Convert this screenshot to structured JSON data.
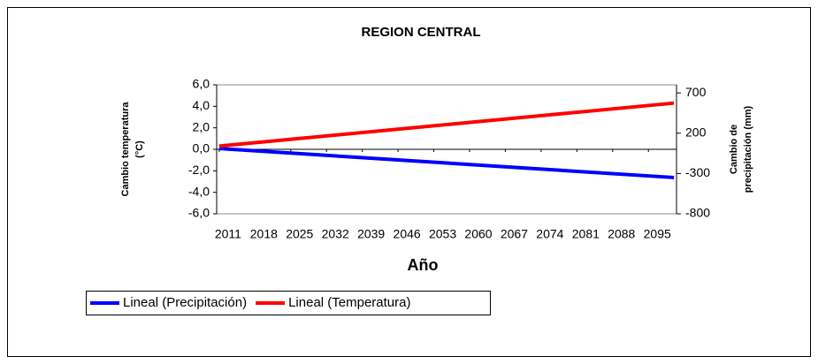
{
  "chart_data": {
    "type": "line",
    "title": "REGION CENTRAL",
    "xlabel": "Año",
    "ylabel": [
      "Cambio temperatura",
      "(°C)"
    ],
    "y2label": [
      "Cambio de",
      "precipitación (mm)"
    ],
    "x": [
      2011,
      2100
    ],
    "xlim": [
      2011,
      2100
    ],
    "xticks": [
      2011,
      2018,
      2025,
      2032,
      2039,
      2046,
      2053,
      2060,
      2067,
      2074,
      2081,
      2088,
      2095
    ],
    "ylim": [
      -6,
      6
    ],
    "yticks": [
      {
        "value": -6,
        "label": "-6,0"
      },
      {
        "value": -4,
        "label": "-4,0"
      },
      {
        "value": -2,
        "label": "-2,0"
      },
      {
        "value": 0,
        "label": "0,0"
      },
      {
        "value": 2,
        "label": "2,0"
      },
      {
        "value": 4,
        "label": "4,0"
      },
      {
        "value": 6,
        "label": "6,0"
      }
    ],
    "y2lim": [
      -800,
      800
    ],
    "y2ticks": [
      -800,
      -300,
      200,
      700
    ],
    "series": [
      {
        "name": "Lineal (Precipitación)",
        "color": "#0000ff",
        "axis": "y2",
        "values": [
          10,
          -350
        ]
      },
      {
        "name": "Lineal (Temperatura)",
        "color": "#ff0000",
        "values": [
          0.3,
          4.3
        ]
      }
    ]
  }
}
